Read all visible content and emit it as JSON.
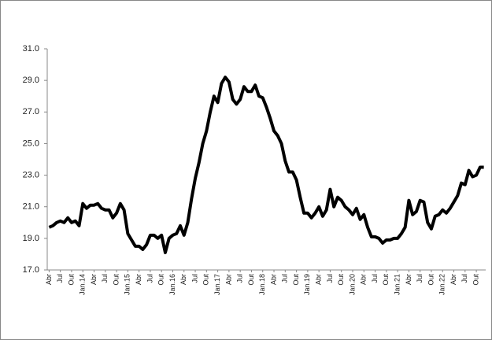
{
  "chart_data": {
    "type": "line",
    "categories": [
      "Abr",
      null,
      null,
      "Jul",
      null,
      null,
      "Out",
      null,
      null,
      "Jan.14",
      null,
      null,
      "Abr",
      null,
      null,
      "Jul",
      null,
      null,
      "Out",
      null,
      null,
      "Jan.15",
      null,
      null,
      "Abr",
      null,
      null,
      "Jul",
      null,
      null,
      "Out",
      null,
      null,
      "Jan.16",
      null,
      null,
      "Abr",
      null,
      null,
      "Jul",
      null,
      null,
      "Out",
      null,
      null,
      "Jan.17",
      null,
      null,
      "Abr",
      null,
      null,
      "Jul",
      null,
      null,
      "Out",
      null,
      null,
      "Jan.18",
      null,
      null,
      "Abr",
      null,
      null,
      "Jul",
      null,
      null,
      "Out",
      null,
      null,
      "Jan.19",
      null,
      null,
      "Abr",
      null,
      null,
      "Jul",
      null,
      null,
      "Out",
      null,
      null,
      "Jan.20",
      null,
      null,
      "Abr",
      null,
      null,
      "Jul",
      null,
      null,
      "Out",
      null,
      null,
      "Jan.21",
      null,
      null,
      "Abr",
      null,
      null,
      "Jul",
      null,
      null,
      "Out",
      null,
      null,
      "Jan.22",
      null,
      null,
      "Abr",
      null,
      null,
      "Jul",
      null,
      null,
      "Out",
      null,
      null
    ],
    "values": [
      19.7,
      19.8,
      20.0,
      20.1,
      20.0,
      20.3,
      20.0,
      20.1,
      19.8,
      21.2,
      20.9,
      21.1,
      21.1,
      21.2,
      20.9,
      20.8,
      20.8,
      20.3,
      20.6,
      21.2,
      20.8,
      19.3,
      18.9,
      18.5,
      18.5,
      18.3,
      18.6,
      19.2,
      19.2,
      19.0,
      19.2,
      18.1,
      19.0,
      19.2,
      19.3,
      19.8,
      19.2,
      20.0,
      21.5,
      22.8,
      23.8,
      25.0,
      25.8,
      27.0,
      28.0,
      27.6,
      28.8,
      29.2,
      28.9,
      27.8,
      27.5,
      27.8,
      28.6,
      28.3,
      28.3,
      28.7,
      28.0,
      27.9,
      27.3,
      26.6,
      25.8,
      25.5,
      25.0,
      23.9,
      23.2,
      23.2,
      22.7,
      21.6,
      20.6,
      20.6,
      20.3,
      20.6,
      21.0,
      20.4,
      20.8,
      22.1,
      21.0,
      21.6,
      21.4,
      21.0,
      20.8,
      20.5,
      20.9,
      20.2,
      20.5,
      19.7,
      19.1,
      19.1,
      19.0,
      18.7,
      18.9,
      18.9,
      19.0,
      19.0,
      19.3,
      19.7,
      21.4,
      20.5,
      20.7,
      21.4,
      21.3,
      20.0,
      19.6,
      20.4,
      20.5,
      20.8,
      20.6,
      20.9,
      21.3,
      21.7,
      22.5,
      22.4,
      23.3,
      22.9,
      23.0,
      23.5,
      23.5
    ],
    "color": "#000000",
    "ylim": [
      17,
      31
    ],
    "yticks": [
      {
        "value": 17,
        "label": "17.0"
      },
      {
        "value": 19,
        "label": "19.0"
      },
      {
        "value": 21,
        "label": "21.0"
      },
      {
        "value": 23,
        "label": "23.0"
      },
      {
        "value": 25,
        "label": "25.0"
      },
      {
        "value": 27,
        "label": "27.0"
      },
      {
        "value": 29,
        "label": "29.0"
      },
      {
        "value": 31,
        "label": "31.0"
      }
    ],
    "grid": false
  }
}
